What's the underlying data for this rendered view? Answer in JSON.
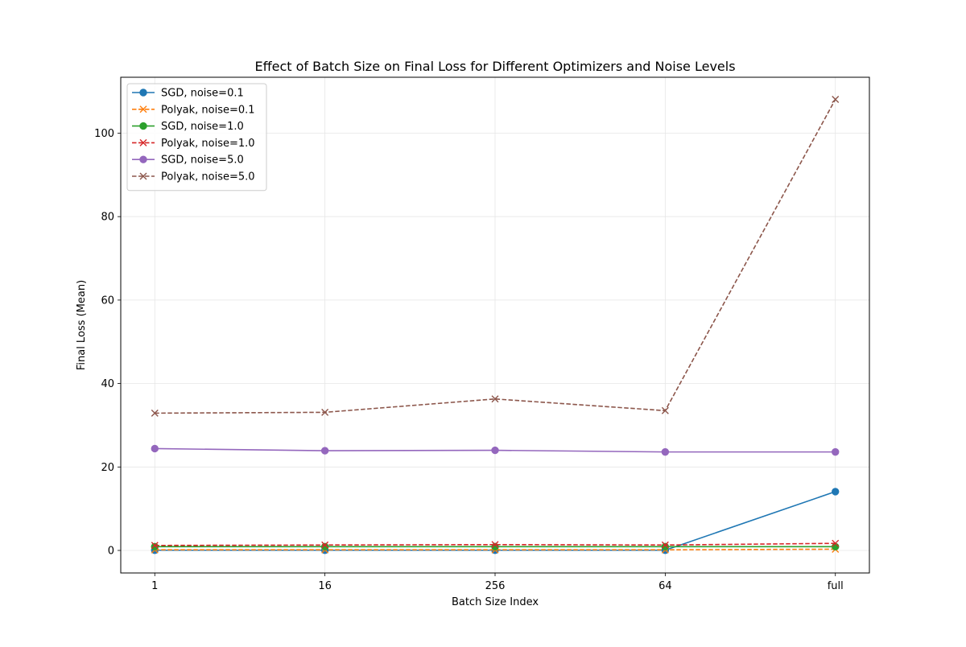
{
  "chart_data": {
    "type": "line",
    "title": "Effect of Batch Size on Final Loss for Different Optimizers and Noise Levels",
    "xlabel": "Batch Size Index",
    "ylabel": "Final Loss (Mean)",
    "categories": [
      "1",
      "16",
      "256",
      "64",
      "full"
    ],
    "ylim": [
      -5.4,
      113.4
    ],
    "yticks": [
      0,
      20,
      40,
      60,
      80,
      100
    ],
    "grid": true,
    "legend_position": "top-left",
    "series": [
      {
        "name": "SGD, noise=0.1",
        "color": "#1f77b4",
        "linestyle": "solid",
        "marker": "circle",
        "values": [
          0.05,
          0.05,
          0.05,
          0.05,
          14.1
        ]
      },
      {
        "name": "Polyak, noise=0.1",
        "color": "#ff7f0e",
        "linestyle": "dashed",
        "marker": "x",
        "values": [
          0.15,
          0.15,
          0.15,
          0.15,
          0.3
        ]
      },
      {
        "name": "SGD, noise=1.0",
        "color": "#2ca02c",
        "linestyle": "solid",
        "marker": "circle",
        "values": [
          0.9,
          0.9,
          0.9,
          0.9,
          0.9
        ]
      },
      {
        "name": "Polyak, noise=1.0",
        "color": "#d62728",
        "linestyle": "dashed",
        "marker": "x",
        "values": [
          1.2,
          1.3,
          1.4,
          1.3,
          1.7
        ]
      },
      {
        "name": "SGD, noise=5.0",
        "color": "#9467bd",
        "linestyle": "solid",
        "marker": "circle",
        "values": [
          24.4,
          23.9,
          24.0,
          23.6,
          23.6
        ]
      },
      {
        "name": "Polyak, noise=5.0",
        "color": "#8c564b",
        "linestyle": "dashed",
        "marker": "x",
        "values": [
          32.9,
          33.1,
          36.3,
          33.5,
          108.1
        ]
      }
    ]
  }
}
